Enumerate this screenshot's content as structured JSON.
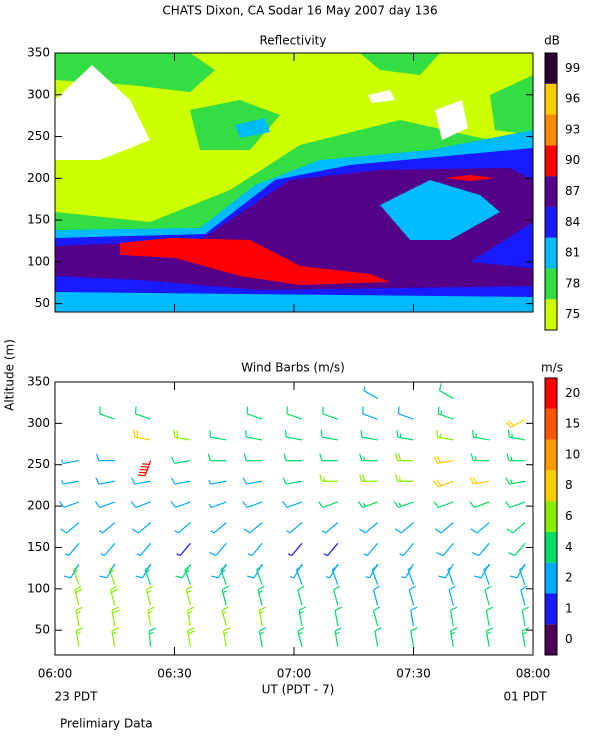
{
  "title": "CHATS Dixon, CA  Sodar  16 May 2007  day 136",
  "footnote": "Prelimiary Data",
  "chart_data": [
    {
      "type": "contour",
      "title": "Reflectivity",
      "xlim": [
        0,
        120
      ],
      "ylim": [
        40,
        350
      ],
      "yticks": [
        50,
        100,
        150,
        200,
        250,
        300,
        350
      ],
      "colorbar": {
        "label": "dB",
        "levels": [
          75,
          78,
          81,
          84,
          87,
          90,
          93,
          96,
          99
        ],
        "colors": [
          "#ccff00",
          "#33dd44",
          "#00bbff",
          "#1a1aff",
          "#550088",
          "#ff0000",
          "#ff8800",
          "#ffcc00",
          "#2a0033"
        ]
      }
    },
    {
      "type": "barbs",
      "title": "Wind Barbs (m/s)",
      "y_label": "Altitude (m)",
      "x_label": "UT  (PDT - 7)",
      "x_start_note": "23 PDT",
      "x_end_note": "01 PDT",
      "xlim": [
        0,
        120
      ],
      "ylim": [
        20,
        350
      ],
      "xticks": [
        {
          "value": 0,
          "label": "06:00"
        },
        {
          "value": 30,
          "label": "06:30"
        },
        {
          "value": 60,
          "label": "07:00"
        },
        {
          "value": 90,
          "label": "07:30"
        },
        {
          "value": 120,
          "label": "08:00"
        }
      ],
      "yticks": [
        50,
        100,
        150,
        200,
        250,
        300,
        350
      ],
      "colorbar": {
        "label": "m/s",
        "levels": [
          0,
          1,
          2,
          4,
          6,
          8,
          10,
          15,
          20
        ],
        "colors": [
          "#4a0055",
          "#1a1aff",
          "#00aaff",
          "#00dd66",
          "#88ee00",
          "#ffcc00",
          "#ff9900",
          "#ff5500",
          "#ff0000"
        ]
      },
      "times": [
        6,
        15,
        24,
        34,
        43,
        52,
        62,
        71,
        81,
        90,
        100,
        109,
        118
      ],
      "altitudes": [
        30,
        55,
        80,
        105,
        130,
        155,
        180,
        205,
        230,
        255,
        280,
        305,
        330
      ],
      "speed": [
        [
          6,
          6,
          7,
          6,
          3,
          2,
          3,
          3,
          2,
          2,
          null,
          null,
          null
        ],
        [
          6,
          7,
          7,
          6,
          3,
          2,
          2,
          3,
          3,
          3,
          null,
          4,
          null
        ],
        [
          5,
          6,
          6,
          5,
          3,
          2,
          3,
          3,
          3,
          20,
          8,
          4,
          null
        ],
        [
          7,
          6,
          6,
          5,
          4,
          1,
          2,
          3,
          3,
          4,
          7,
          null,
          null
        ],
        [
          6,
          6,
          5,
          5,
          3,
          3,
          2,
          2,
          2,
          4,
          4,
          null,
          null
        ],
        [
          5,
          6,
          5,
          4,
          3,
          2,
          3,
          3,
          3,
          4,
          4,
          4,
          null
        ],
        [
          5,
          5,
          4,
          3,
          2,
          1,
          2,
          3,
          4,
          4,
          4,
          4,
          null
        ],
        [
          5,
          4,
          4,
          3,
          2,
          1,
          2,
          4,
          6,
          4,
          4,
          4,
          null
        ],
        [
          4,
          4,
          3,
          3,
          2,
          2,
          3,
          5,
          7,
          5,
          4,
          3,
          2
        ],
        [
          4,
          3,
          3,
          2,
          2,
          2,
          3,
          5,
          6,
          7,
          5,
          3,
          null
        ],
        [
          5,
          4,
          3,
          2,
          3,
          3,
          3,
          4,
          8,
          8,
          6,
          5,
          4
        ],
        [
          5,
          4,
          4,
          3,
          3,
          3,
          3,
          4,
          8,
          5,
          5,
          null,
          null
        ],
        [
          5,
          4,
          3,
          3,
          3,
          4,
          4,
          4,
          5,
          5,
          5,
          8,
          null
        ]
      ],
      "direction": [
        [
          350,
          350,
          345,
          340,
          210,
          220,
          230,
          250,
          260,
          260,
          null,
          null,
          null
        ],
        [
          350,
          350,
          345,
          340,
          210,
          220,
          230,
          250,
          260,
          270,
          null,
          290,
          null
        ],
        [
          355,
          350,
          345,
          340,
          210,
          220,
          230,
          250,
          260,
          200,
          280,
          290,
          null
        ],
        [
          350,
          350,
          345,
          340,
          210,
          220,
          230,
          250,
          260,
          260,
          280,
          null,
          null
        ],
        [
          350,
          345,
          345,
          340,
          210,
          220,
          230,
          250,
          260,
          270,
          280,
          null,
          null
        ],
        [
          350,
          350,
          345,
          340,
          210,
          220,
          230,
          250,
          260,
          270,
          280,
          290,
          null
        ],
        [
          345,
          350,
          345,
          340,
          210,
          220,
          230,
          250,
          260,
          270,
          280,
          290,
          null
        ],
        [
          350,
          350,
          345,
          340,
          210,
          220,
          230,
          250,
          270,
          270,
          280,
          290,
          null
        ],
        [
          350,
          345,
          345,
          340,
          210,
          220,
          230,
          250,
          270,
          270,
          280,
          290,
          300
        ],
        [
          350,
          350,
          345,
          340,
          210,
          220,
          230,
          250,
          270,
          270,
          280,
          290,
          null
        ],
        [
          350,
          350,
          345,
          340,
          210,
          220,
          230,
          250,
          250,
          260,
          280,
          290,
          300
        ],
        [
          350,
          350,
          345,
          340,
          210,
          220,
          230,
          250,
          260,
          270,
          280,
          null,
          null
        ],
        [
          350,
          350,
          345,
          340,
          210,
          220,
          230,
          250,
          260,
          270,
          280,
          240,
          null
        ]
      ]
    }
  ]
}
